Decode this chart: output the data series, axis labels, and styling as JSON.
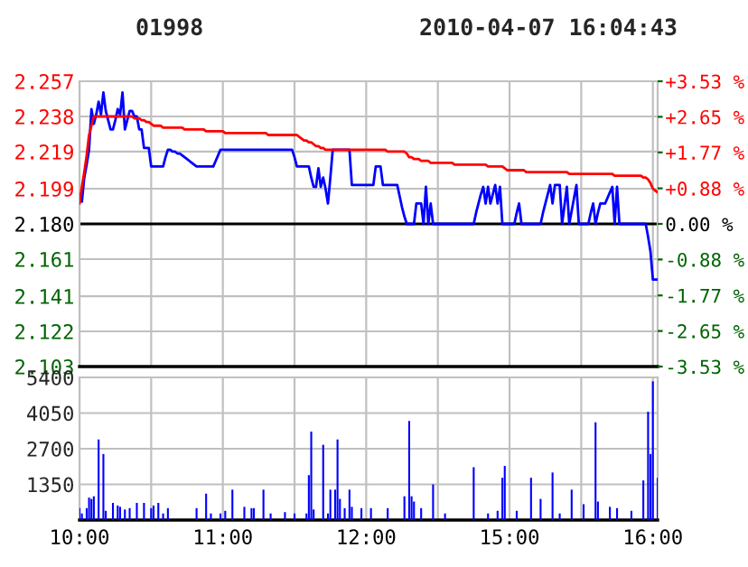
{
  "chart_data": [
    {
      "type": "line",
      "title": "01998",
      "subtitle": "2010-04-07 16:04:43",
      "categories": [
        null,
        null,
        null,
        null,
        null,
        null,
        null,
        null,
        null,
        null,
        null,
        null,
        null,
        null,
        null,
        null,
        null,
        null,
        null,
        null,
        null,
        null,
        null,
        null,
        null,
        null,
        null,
        null,
        null,
        null,
        null,
        null,
        null,
        null,
        null,
        null,
        null,
        null,
        null,
        null,
        null,
        null,
        null,
        null,
        null,
        null,
        null,
        null,
        null,
        null,
        null,
        null,
        null,
        null,
        null,
        null,
        null,
        null,
        null,
        null,
        null,
        null,
        null,
        null,
        null,
        null,
        null,
        null,
        null,
        null,
        null,
        null,
        null,
        null,
        null,
        null,
        null,
        null,
        null,
        null,
        null,
        null,
        null,
        null,
        null,
        null,
        null,
        null,
        null,
        null,
        null,
        null,
        null,
        null,
        null,
        null,
        null,
        null,
        null,
        null,
        null,
        null,
        null,
        null,
        null,
        null,
        null,
        null,
        null,
        null,
        null,
        null,
        null,
        null,
        null,
        null,
        null,
        null,
        null,
        null,
        null,
        null,
        null,
        null,
        null,
        null,
        null,
        null,
        null,
        null,
        null,
        null,
        null,
        null,
        null,
        null,
        null,
        null,
        null,
        null,
        null,
        null,
        null,
        null,
        null,
        null,
        null,
        null,
        null,
        null,
        null,
        null,
        null,
        null,
        null,
        null,
        null,
        null,
        null,
        null,
        null,
        null,
        null,
        null,
        null,
        null,
        null,
        null,
        null,
        null,
        null,
        null,
        null,
        null,
        null,
        null,
        null,
        null,
        null,
        null,
        null,
        null,
        null,
        null,
        null,
        null,
        null,
        null,
        null,
        null,
        null,
        null,
        null,
        null,
        null,
        null,
        null,
        null,
        null,
        null,
        null,
        null,
        null,
        null,
        null,
        null,
        null,
        null,
        null,
        null,
        null,
        null,
        null,
        null,
        null,
        null,
        null,
        null,
        null,
        null,
        null,
        null,
        null,
        null,
        null,
        null,
        null,
        null,
        null,
        null,
        null,
        null,
        null,
        null,
        null,
        null,
        null,
        null,
        null,
        null,
        null,
        null,
        null
      ],
      "ylim": [
        2.103,
        2.257
      ],
      "yticks": [
        {
          "value": 2.103,
          "label": "2.103"
        },
        {
          "value": 2.122,
          "label": "2.122"
        },
        {
          "value": 2.141,
          "label": "2.141"
        },
        {
          "value": 2.161,
          "label": "2.161"
        },
        {
          "value": 2.18,
          "label": "2.180"
        },
        {
          "value": 2.199,
          "label": "2.199"
        },
        {
          "value": 2.219,
          "label": "2.219"
        },
        {
          "value": 2.238,
          "label": "2.238"
        },
        {
          "value": 2.257,
          "label": "2.257"
        }
      ],
      "y2lim": [
        -3.53,
        3.53
      ],
      "y2ticks": [
        {
          "value": -3.53,
          "label": "-3.53 %"
        },
        {
          "value": -2.65,
          "label": "-2.65 %"
        },
        {
          "value": -1.77,
          "label": "-1.77 %"
        },
        {
          "value": -0.88,
          "label": "-0.88 %"
        },
        {
          "value": 0,
          "label": "0.00 %"
        },
        {
          "value": 0.88,
          "label": "+0.88 %"
        },
        {
          "value": 1.77,
          "label": "+1.77 %"
        },
        {
          "value": 2.65,
          "label": "+2.65 %"
        },
        {
          "value": 3.53,
          "label": "+3.53 %"
        }
      ],
      "tick_labels": "y",
      "grid": true,
      "ref_lines": [
        {
          "axis": "y",
          "value": 2.18,
          "color": "#000000"
        }
      ],
      "series": [
        {
          "color": "#0000ff",
          "values": [
            2.196,
            2.192,
            2.205,
            2.212,
            2.22,
            2.242,
            2.234,
            2.239,
            2.246,
            2.239,
            2.251,
            2.241,
            2.236,
            2.231,
            2.231,
            2.236,
            2.242,
            2.239,
            2.251,
            2.231,
            2.236,
            2.241,
            2.241,
            2.238,
            2.238,
            2.231,
            2.231,
            2.221,
            2.221,
            2.221,
            2.211,
            2.211,
            2.211,
            2.211,
            2.211,
            2.211,
            2.216,
            2.22,
            2.22,
            2.219,
            2.219,
            2.218,
            2.218,
            2.217,
            2.216,
            2.215,
            2.214,
            2.213,
            2.212,
            2.211,
            2.211,
            2.211,
            2.211,
            2.211,
            2.211,
            2.211,
            2.211,
            2.214,
            2.217,
            2.22,
            2.22,
            2.22,
            2.22,
            2.22,
            2.22,
            2.22,
            2.22,
            2.22,
            2.22,
            2.22,
            2.22,
            2.22,
            2.22,
            2.22,
            2.22,
            2.22,
            2.22,
            2.22,
            2.22,
            2.22,
            2.22,
            2.22,
            2.22,
            2.22,
            2.22,
            2.22,
            2.22,
            2.22,
            2.22,
            2.22,
            2.216,
            2.211,
            2.211,
            2.211,
            2.211,
            2.211,
            2.211,
            2.205,
            2.2,
            2.2,
            2.21,
            2.2,
            2.205,
            2.199,
            2.191,
            2.205,
            2.22,
            2.22,
            2.22,
            2.22,
            2.22,
            2.22,
            2.22,
            2.22,
            2.201,
            2.201,
            2.201,
            2.201,
            2.201,
            2.201,
            2.201,
            2.201,
            2.201,
            2.201,
            2.211,
            2.211,
            2.211,
            2.201,
            2.201,
            2.201,
            2.201,
            2.201,
            2.201,
            2.201,
            2.195,
            2.189,
            2.184,
            2.18,
            2.18,
            2.18,
            2.18,
            2.191,
            2.191,
            2.191,
            2.18,
            2.2,
            2.18,
            2.191,
            2.18,
            2.18,
            2.18,
            2.18,
            2.18,
            2.18,
            2.18,
            2.18,
            2.18,
            2.18,
            2.18,
            2.18,
            2.18,
            2.18,
            2.18,
            2.18,
            2.18,
            2.18,
            2.186,
            2.191,
            2.196,
            2.2,
            2.191,
            2.2,
            2.191,
            2.196,
            2.201,
            2.191,
            2.2,
            2.18,
            2.18,
            2.18,
            2.18,
            2.18,
            2.18,
            2.186,
            2.191,
            2.18,
            2.18,
            2.18,
            2.18,
            2.18,
            2.18,
            2.18,
            2.18,
            2.18,
            2.186,
            2.191,
            2.196,
            2.201,
            2.191,
            2.201,
            2.201,
            2.201,
            2.18,
            2.19,
            2.2,
            2.18,
            2.187,
            2.194,
            2.201,
            2.18,
            2.18,
            2.18,
            2.18,
            2.18,
            2.186,
            2.191,
            2.18,
            2.186,
            2.191,
            2.191,
            2.191,
            2.194,
            2.197,
            2.2,
            2.18,
            2.2,
            2.18,
            2.18,
            2.18,
            2.18,
            2.18,
            2.18,
            2.18,
            2.18,
            2.18,
            2.18,
            2.18,
            2.18,
            2.173,
            2.165,
            2.15,
            2.15,
            2.15
          ]
        },
        {
          "color": "#ff0000",
          "values": [
            2.191,
            2.2,
            2.208,
            2.217,
            2.228,
            2.233,
            2.238,
            2.238,
            2.238,
            2.238,
            2.238,
            2.238,
            2.238,
            2.238,
            2.238,
            2.238,
            2.238,
            2.238,
            2.238,
            2.238,
            2.238,
            2.238,
            2.238,
            2.237,
            2.237,
            2.237,
            2.236,
            2.236,
            2.235,
            2.235,
            2.234,
            2.233,
            2.233,
            2.233,
            2.233,
            2.232,
            2.232,
            2.232,
            2.232,
            2.232,
            2.232,
            2.232,
            2.232,
            2.232,
            2.231,
            2.231,
            2.231,
            2.231,
            2.231,
            2.231,
            2.231,
            2.231,
            2.231,
            2.23,
            2.23,
            2.23,
            2.23,
            2.23,
            2.23,
            2.23,
            2.23,
            2.229,
            2.229,
            2.229,
            2.229,
            2.229,
            2.229,
            2.229,
            2.229,
            2.229,
            2.229,
            2.229,
            2.229,
            2.229,
            2.229,
            2.229,
            2.229,
            2.229,
            2.229,
            2.228,
            2.228,
            2.228,
            2.228,
            2.228,
            2.228,
            2.228,
            2.228,
            2.228,
            2.228,
            2.228,
            2.228,
            2.228,
            2.227,
            2.226,
            2.225,
            2.225,
            2.224,
            2.224,
            2.223,
            2.222,
            2.222,
            2.221,
            2.221,
            2.22,
            2.22,
            2.22,
            2.22,
            2.22,
            2.22,
            2.22,
            2.22,
            2.22,
            2.22,
            2.22,
            2.22,
            2.22,
            2.22,
            2.22,
            2.22,
            2.22,
            2.22,
            2.22,
            2.22,
            2.22,
            2.22,
            2.22,
            2.22,
            2.22,
            2.22,
            2.219,
            2.219,
            2.219,
            2.219,
            2.219,
            2.219,
            2.219,
            2.219,
            2.218,
            2.216,
            2.216,
            2.215,
            2.215,
            2.215,
            2.214,
            2.214,
            2.214,
            2.214,
            2.213,
            2.213,
            2.213,
            2.213,
            2.213,
            2.213,
            2.213,
            2.213,
            2.213,
            2.213,
            2.212,
            2.212,
            2.212,
            2.212,
            2.212,
            2.212,
            2.212,
            2.212,
            2.212,
            2.212,
            2.212,
            2.212,
            2.212,
            2.212,
            2.211,
            2.211,
            2.211,
            2.211,
            2.211,
            2.211,
            2.211,
            2.21,
            2.209,
            2.209,
            2.209,
            2.209,
            2.209,
            2.209,
            2.209,
            2.209,
            2.208,
            2.208,
            2.208,
            2.208,
            2.208,
            2.208,
            2.208,
            2.208,
            2.208,
            2.208,
            2.208,
            2.208,
            2.208,
            2.208,
            2.208,
            2.208,
            2.208,
            2.208,
            2.207,
            2.207,
            2.207,
            2.207,
            2.207,
            2.207,
            2.207,
            2.207,
            2.207,
            2.207,
            2.207,
            2.207,
            2.207,
            2.207,
            2.207,
            2.207,
            2.207,
            2.207,
            2.207,
            2.206,
            2.206,
            2.206,
            2.206,
            2.206,
            2.206,
            2.206,
            2.206,
            2.206,
            2.206,
            2.206,
            2.206,
            2.205,
            2.205,
            2.204,
            2.202,
            2.199,
            2.198,
            2.197
          ]
        }
      ]
    },
    {
      "type": "bar",
      "categories": [
        "10:00",
        null,
        null,
        null,
        null,
        null,
        null,
        null,
        null,
        null,
        null,
        null,
        null,
        null,
        null,
        null,
        null,
        null,
        null,
        null,
        null,
        null,
        null,
        null,
        null,
        null,
        null,
        null,
        null,
        null,
        null,
        null,
        null,
        null,
        null,
        null,
        null,
        null,
        null,
        null,
        null,
        null,
        null,
        null,
        null,
        null,
        null,
        null,
        null,
        null,
        null,
        null,
        null,
        null,
        null,
        null,
        null,
        null,
        null,
        null,
        "11:00",
        null,
        null,
        null,
        null,
        null,
        null,
        null,
        null,
        null,
        null,
        null,
        null,
        null,
        null,
        null,
        null,
        null,
        null,
        null,
        null,
        null,
        null,
        null,
        null,
        null,
        null,
        null,
        null,
        null,
        null,
        null,
        null,
        null,
        null,
        null,
        null,
        null,
        null,
        null,
        null,
        null,
        null,
        null,
        null,
        null,
        null,
        null,
        null,
        null,
        null,
        null,
        null,
        null,
        null,
        null,
        null,
        null,
        null,
        null,
        "12:00",
        null,
        null,
        null,
        null,
        null,
        null,
        null,
        null,
        null,
        null,
        null,
        null,
        null,
        null,
        null,
        null,
        null,
        null,
        null,
        null,
        null,
        null,
        null,
        null,
        null,
        null,
        null,
        null,
        null,
        null,
        null,
        null,
        null,
        null,
        null,
        null,
        null,
        null,
        null,
        null,
        null,
        null,
        null,
        null,
        null,
        null,
        null,
        null,
        null,
        null,
        null,
        null,
        null,
        null,
        null,
        null,
        null,
        null,
        null,
        "15:00",
        null,
        null,
        null,
        null,
        null,
        null,
        null,
        null,
        null,
        null,
        null,
        null,
        null,
        null,
        null,
        null,
        null,
        null,
        null,
        null,
        null,
        null,
        null,
        null,
        null,
        null,
        null,
        null,
        null,
        null,
        null,
        null,
        null,
        null,
        null,
        null,
        null,
        null,
        null,
        null,
        null,
        null,
        null,
        null,
        null,
        null,
        null,
        null,
        null,
        null,
        null,
        null,
        null,
        null,
        null,
        null,
        null,
        null,
        null,
        "16:00",
        null,
        null
      ],
      "ylim": [
        0,
        5400
      ],
      "yticks": [
        1350,
        2700,
        4050,
        5400
      ],
      "grid": true,
      "series": [
        {
          "color": "#0000ff",
          "values": [
            450,
            250,
            null,
            450,
            850,
            800,
            900,
            null,
            3050,
            null,
            2500,
            350,
            null,
            null,
            650,
            null,
            550,
            500,
            null,
            400,
            null,
            450,
            null,
            null,
            650,
            null,
            null,
            650,
            null,
            null,
            450,
            550,
            null,
            650,
            null,
            250,
            null,
            450,
            null,
            null,
            null,
            null,
            null,
            null,
            null,
            null,
            null,
            null,
            null,
            450,
            null,
            null,
            null,
            1000,
            null,
            250,
            null,
            null,
            null,
            250,
            null,
            350,
            null,
            null,
            1150,
            null,
            null,
            null,
            null,
            500,
            null,
            null,
            450,
            450,
            null,
            null,
            null,
            1150,
            null,
            null,
            250,
            null,
            null,
            null,
            null,
            null,
            300,
            null,
            null,
            null,
            250,
            null,
            null,
            null,
            null,
            250,
            1700,
            3350,
            400,
            null,
            null,
            null,
            2850,
            null,
            250,
            1150,
            null,
            1150,
            3050,
            800,
            null,
            450,
            null,
            1150,
            500,
            null,
            null,
            null,
            450,
            null,
            null,
            null,
            450,
            null,
            null,
            null,
            null,
            null,
            null,
            450,
            null,
            null,
            null,
            null,
            null,
            null,
            900,
            null,
            3750,
            900,
            700,
            null,
            null,
            450,
            null,
            null,
            null,
            null,
            1350,
            null,
            null,
            null,
            null,
            250,
            null,
            null,
            null,
            null,
            null,
            null,
            null,
            null,
            null,
            null,
            null,
            2000,
            null,
            null,
            null,
            null,
            null,
            250,
            null,
            null,
            null,
            350,
            null,
            1600,
            2050,
            null,
            null,
            null,
            null,
            350,
            null,
            null,
            null,
            null,
            null,
            1600,
            null,
            null,
            null,
            800,
            null,
            null,
            null,
            null,
            1800,
            null,
            null,
            250,
            null,
            null,
            null,
            null,
            1150,
            null,
            null,
            null,
            null,
            600,
            null,
            null,
            null,
            null,
            3700,
            700,
            null,
            null,
            null,
            null,
            500,
            null,
            null,
            450,
            null,
            null,
            null,
            null,
            null,
            350,
            null,
            null,
            null,
            null,
            1500,
            null,
            4100,
            2500,
            5250,
            null,
            1600
          ]
        }
      ]
    }
  ]
}
